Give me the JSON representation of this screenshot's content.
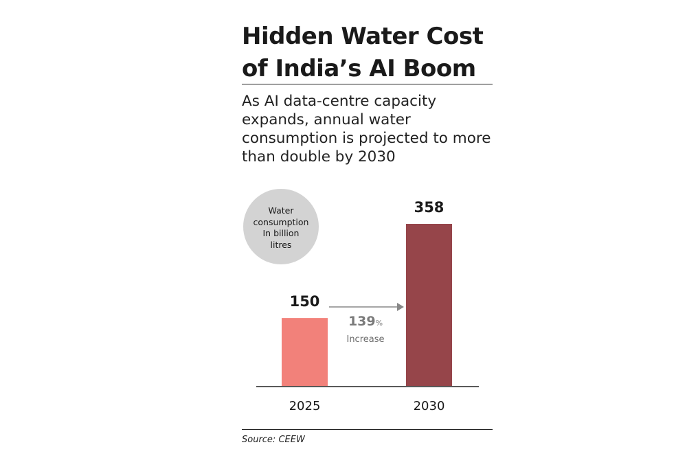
{
  "title_lines": [
    "Hidden Water Cost",
    "of India’s AI Boom"
  ],
  "subtitle": "As AI data-centre capacity expands, annual water consumption is projected to more than double by 2030",
  "unit_badge_lines": [
    "Water",
    "consumption",
    "In billion",
    "litres"
  ],
  "increase": {
    "value": "139",
    "unit": "%",
    "label": "Increase"
  },
  "source": "Source: CEEW",
  "colors": {
    "bar_2025": "#f2817a",
    "bar_2030": "#96454a",
    "badge": "#d3d3d3",
    "arrow": "#888888",
    "text": "#1a1a1a"
  },
  "chart_data": {
    "type": "bar",
    "categories": [
      "2025",
      "2030"
    ],
    "values": [
      150,
      358
    ],
    "data_labels": [
      "150",
      "358"
    ],
    "ylabel": "Water consumption In billion litres",
    "grid": false
  }
}
